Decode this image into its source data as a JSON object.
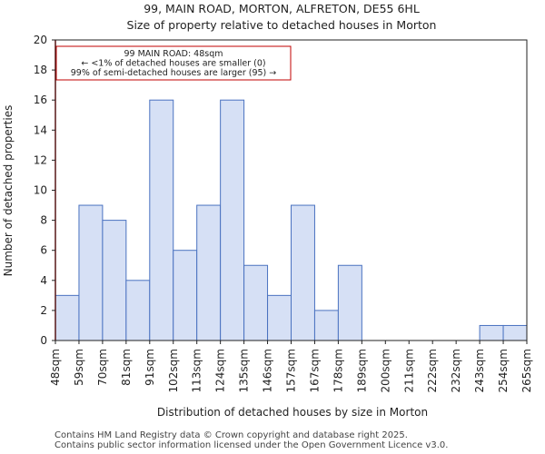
{
  "chart_data": {
    "type": "bar",
    "title": "99, MAIN ROAD, MORTON, ALFRETON, DE55 6HL",
    "subtitle": "Size of property relative to detached houses in Morton",
    "xlabel": "Distribution of detached houses by size in Morton",
    "ylabel": "Number of detached properties",
    "ylim": [
      0,
      20
    ],
    "yticks": [
      0,
      2,
      4,
      6,
      8,
      10,
      12,
      14,
      16,
      18,
      20
    ],
    "bin_edges": [
      "48sqm",
      "59sqm",
      "70sqm",
      "81sqm",
      "91sqm",
      "102sqm",
      "113sqm",
      "124sqm",
      "135sqm",
      "146sqm",
      "157sqm",
      "167sqm",
      "178sqm",
      "189sqm",
      "200sqm",
      "211sqm",
      "222sqm",
      "232sqm",
      "243sqm",
      "254sqm",
      "265sqm"
    ],
    "values": [
      3,
      9,
      8,
      4,
      16,
      6,
      9,
      16,
      5,
      3,
      9,
      2,
      5,
      0,
      0,
      0,
      0,
      0,
      1,
      1
    ],
    "bar_color": "#d6e0f5",
    "bar_edge_color": "#4a72c0",
    "marker": {
      "x": "48sqm",
      "color": "#c00000"
    },
    "annotation": {
      "lines": [
        "99 MAIN ROAD: 48sqm",
        "← <1% of detached houses are smaller (0)",
        "99% of semi-detached houses are larger (95) →"
      ],
      "border_color": "#c00000"
    },
    "grid": false
  },
  "footer": {
    "line1": "Contains HM Land Registry data © Crown copyright and database right 2025.",
    "line2": "Contains public sector information licensed under the Open Government Licence v3.0."
  }
}
